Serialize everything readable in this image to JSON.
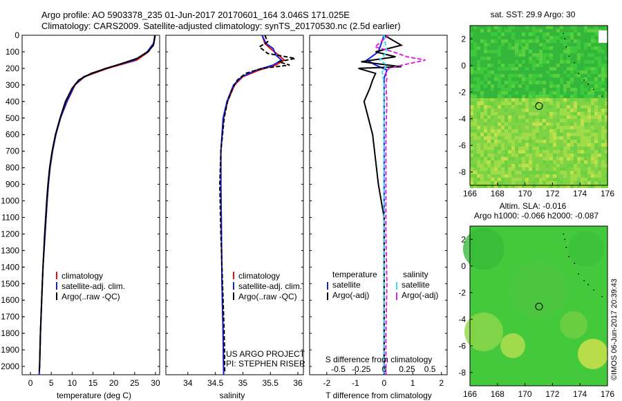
{
  "title_line1": "Argo profile: AO 5903378_235 01-Jun-2017 20170601_164 3.046S 171.025E",
  "title_line2": "Climatology: CARS2009. Satellite-adjusted climatology: synTS_20170530.nc (2.5d earlier)",
  "colors": {
    "climatology": "#e01010",
    "satellite": "#1020e0",
    "argo": "#000000",
    "sat_diff": "#40e0f0",
    "argo_diff": "#e020e0",
    "map_green": "#3ec83c"
  },
  "chart_data": [
    {
      "type": "line",
      "name": "temperature-panel",
      "xlabel": "temperature (deg C)",
      "xlim": [
        -2,
        31
      ],
      "ylim": [
        0,
        2050
      ],
      "xticks": [
        "0",
        "5",
        "10",
        "15",
        "20",
        "25",
        "30"
      ],
      "xtick_values": [
        0,
        5,
        10,
        15,
        20,
        25,
        30
      ],
      "depth_ticks": [
        "0",
        "100",
        "200",
        "300",
        "400",
        "500",
        "600",
        "700",
        "800",
        "900",
        "1000",
        "1100",
        "1200",
        "1300",
        "1400",
        "1500",
        "1600",
        "1700",
        "1800",
        "1900",
        "2000"
      ],
      "legend": [
        "climatology",
        "satellite-adj. clim.",
        "Argo(..raw -QC)"
      ],
      "series": [
        {
          "name": "climatology",
          "color": "#e01010",
          "depth": [
            0,
            50,
            100,
            150,
            200,
            250,
            300,
            400,
            500,
            600,
            700,
            800,
            900,
            1000,
            1200,
            1400,
            1600,
            1800,
            2000,
            2050
          ],
          "values": [
            29.8,
            29.6,
            28.3,
            25.5,
            18.5,
            13.0,
            10.7,
            8.8,
            7.2,
            6.1,
            5.3,
            4.7,
            4.3,
            4.0,
            3.5,
            3.0,
            2.7,
            2.4,
            2.2,
            2.1
          ]
        },
        {
          "name": "satellite-adj. clim.",
          "color": "#1020e0",
          "depth": [
            0,
            50,
            100,
            150,
            200,
            250,
            300,
            400,
            500,
            600,
            700,
            800,
            900,
            1000,
            1200,
            1400,
            1600,
            1800,
            2000,
            2050
          ],
          "values": [
            29.9,
            29.5,
            28.0,
            25.0,
            18.0,
            12.8,
            10.6,
            8.7,
            7.2,
            6.1,
            5.3,
            4.7,
            4.3,
            4.0,
            3.5,
            3.0,
            2.7,
            2.4,
            2.2,
            2.1
          ]
        },
        {
          "name": "Argo(..raw -QC)",
          "color": "#000000",
          "depth": [
            0,
            20,
            60,
            100,
            140,
            170,
            200,
            230,
            270,
            320,
            400,
            500,
            600,
            700,
            800,
            900,
            1000,
            1200,
            1400,
            1600,
            1800,
            2000,
            2030
          ],
          "values": [
            29.9,
            29.8,
            29.5,
            28.2,
            25.6,
            22.0,
            18.2,
            14.6,
            11.6,
            10.0,
            8.4,
            7.1,
            6.0,
            5.2,
            4.6,
            4.2,
            3.9,
            3.4,
            3.0,
            2.7,
            2.4,
            2.2,
            2.1
          ]
        }
      ]
    },
    {
      "type": "line",
      "name": "salinity-panel",
      "xlabel": "salinity",
      "xlim": [
        33.6,
        36.1
      ],
      "ylim": [
        0,
        2050
      ],
      "xticks": [
        "34",
        "34.5",
        "35",
        "35.5",
        "36"
      ],
      "xtick_values": [
        34,
        34.5,
        35,
        35.5,
        36
      ],
      "legend": [
        "climatology",
        "satellite-adj. clim.",
        "Argo(..raw -QC)"
      ],
      "series": [
        {
          "name": "climatology",
          "color": "#e01010",
          "depth": [
            0,
            50,
            80,
            120,
            150,
            180,
            210,
            250,
            300,
            400,
            500,
            700,
            900,
            1200,
            1500,
            1800,
            2050
          ],
          "values": [
            35.35,
            35.4,
            35.5,
            35.65,
            35.75,
            35.6,
            35.3,
            35.0,
            34.85,
            34.72,
            34.65,
            34.6,
            34.6,
            34.61,
            34.62,
            34.64,
            34.65
          ]
        },
        {
          "name": "satellite-adj. clim.",
          "color": "#1020e0",
          "depth": [
            0,
            50,
            80,
            120,
            150,
            180,
            210,
            250,
            300,
            400,
            500,
            700,
            900,
            1200,
            1500,
            1800,
            2050
          ],
          "values": [
            35.35,
            35.42,
            35.55,
            35.6,
            35.7,
            35.55,
            35.25,
            34.98,
            34.83,
            34.71,
            34.64,
            34.6,
            34.6,
            34.61,
            34.62,
            34.64,
            34.65
          ]
        },
        {
          "name": "Argo(..raw -QC)",
          "color": "#000000",
          "depth": [
            0,
            40,
            70,
            110,
            140,
            160,
            180,
            200,
            230,
            270,
            330,
            400,
            500,
            700,
            900,
            1200,
            1500,
            1800,
            2030
          ],
          "values": [
            35.4,
            35.45,
            35.3,
            35.45,
            35.95,
            35.65,
            35.85,
            35.35,
            35.05,
            34.9,
            34.8,
            34.72,
            34.66,
            34.6,
            34.58,
            34.6,
            34.63,
            34.66,
            34.67
          ]
        }
      ],
      "annotation": [
        "US ARGO PROJECT",
        "PI: STEPHEN RISER"
      ]
    },
    {
      "type": "line",
      "name": "difference-panel",
      "xlabel": "T difference from climatology",
      "xlabel_top": "S difference from climatology",
      "xlim": [
        -2.6,
        2.2
      ],
      "ylim": [
        0,
        2050
      ],
      "xticks": [
        "-2",
        "-1",
        "0",
        "1",
        "2"
      ],
      "xtick_values": [
        -2,
        -1,
        0,
        1,
        2
      ],
      "sticks": [
        "-0.5",
        "-0.25",
        "0",
        "0.25",
        "0.5"
      ],
      "stick_values": [
        -0.5,
        -0.25,
        0,
        0.25,
        0.5
      ],
      "legend_headers": [
        "temperature",
        "salinity"
      ],
      "legend": [
        "satellite",
        "Argo(-adj)",
        "satellite",
        "Argo(-adj)"
      ],
      "series": [
        {
          "name": "T satellite",
          "color": "#1020e0",
          "depth": [
            0,
            100,
            150,
            180,
            210,
            260,
            400,
            800,
            1200,
            2050
          ],
          "values": [
            0,
            -0.2,
            -0.6,
            -0.3,
            0.1,
            0,
            0,
            0,
            0,
            0
          ]
        },
        {
          "name": "T Argo(-adj)",
          "color": "#000000",
          "depth": [
            0,
            60,
            100,
            130,
            160,
            190,
            200,
            230,
            270,
            320,
            400,
            600,
            900,
            1000,
            1100,
            1200,
            1500,
            1800,
            2000
          ],
          "values": [
            0,
            0.6,
            -0.3,
            0.4,
            -0.8,
            0.6,
            -0.9,
            -0.3,
            -0.4,
            -0.5,
            -0.7,
            -0.4,
            -0.2,
            -0.1,
            0,
            0,
            0,
            0,
            0
          ]
        },
        {
          "name": "S satellite",
          "color": "#40e0f0",
          "depth": [
            0,
            100,
            150,
            180,
            220,
            300,
            500,
            800,
            1200,
            1600,
            2050
          ],
          "values": [
            0,
            0.03,
            -0.05,
            0.03,
            -0.02,
            0,
            0,
            0,
            0,
            0,
            0
          ]
        },
        {
          "name": "S Argo(-adj)",
          "color": "#e020e0",
          "depth": [
            0,
            70,
            100,
            130,
            150,
            180,
            200,
            230,
            260,
            300,
            400,
            600,
            900,
            1200,
            1500,
            1800,
            2050
          ],
          "values": [
            0.05,
            -0.1,
            0.1,
            0.25,
            0.45,
            0.2,
            0.05,
            0.02,
            0.03,
            0.02,
            0.03,
            0.02,
            0.02,
            0.02,
            0.03,
            0.02,
            0.02
          ]
        }
      ]
    }
  ],
  "sst_map": {
    "title": "sat. SST: 29.9 Argo: 30",
    "xticks": [
      "166",
      "168",
      "170",
      "172",
      "174",
      "176"
    ],
    "yticks": [
      "2",
      "0",
      "-2",
      "-4",
      "-6",
      "-8"
    ],
    "xtick_values": [
      166,
      168,
      170,
      172,
      174,
      176
    ],
    "ytick_values": [
      2,
      0,
      -2,
      -4,
      -6,
      -8
    ],
    "lon_range": [
      166,
      176
    ],
    "lat_range": [
      -9,
      3
    ],
    "float_position": {
      "lon": 171.025,
      "lat": -3.046
    }
  },
  "sla_map": {
    "title_line1": "Altim. SLA: -0.016",
    "title_line2": "Argo h1000: -0.066 h2000: -0.087",
    "xticks": [
      "166",
      "168",
      "170",
      "172",
      "174",
      "176"
    ],
    "yticks": [
      "2",
      "0",
      "-2",
      "-4",
      "-6",
      "-8"
    ],
    "xtick_values": [
      166,
      168,
      170,
      172,
      174,
      176
    ],
    "ytick_values": [
      2,
      0,
      -2,
      -4,
      -6,
      -8
    ],
    "lon_range": [
      166,
      176
    ],
    "lat_range": [
      -9,
      3
    ],
    "float_position": {
      "lon": 171.025,
      "lat": -3.046
    }
  },
  "credit": "©IMOS 06-Jun-2017 20:39:43"
}
